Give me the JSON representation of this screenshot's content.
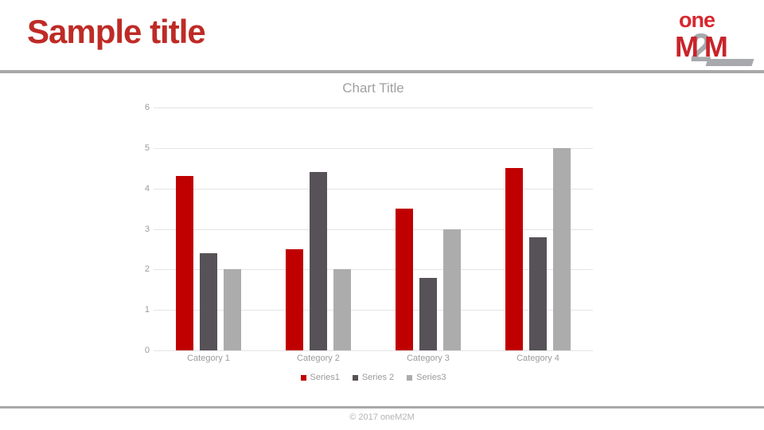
{
  "slide": {
    "title": "Sample title",
    "footer_text": "© 2017 oneM2M"
  },
  "logo": {
    "word": "one",
    "m_left": "M",
    "digit": "2",
    "m_right": "M"
  },
  "colors": {
    "title_red": "#BE2B26",
    "accent_red": "#C00000",
    "rule_gray": "#A8A8A8",
    "axis_text_gray": "#9B9B9B",
    "gridline_gray": "#E4E4E4"
  },
  "chart_data": {
    "type": "bar",
    "title": "Chart Title",
    "categories": [
      "Category 1",
      "Category 2",
      "Category 3",
      "Category 4"
    ],
    "series": [
      {
        "name": "Series1",
        "color": "#C00000",
        "values": [
          4.3,
          2.5,
          3.5,
          4.5
        ]
      },
      {
        "name": "Series 2",
        "color": "#575257",
        "values": [
          2.4,
          4.4,
          1.8,
          2.8
        ]
      },
      {
        "name": "Series3",
        "color": "#ACACAC",
        "values": [
          2.0,
          2.0,
          3.0,
          5.0
        ]
      }
    ],
    "xlabel": "",
    "ylabel": "",
    "ylim": [
      0,
      6
    ],
    "yticks": [
      0,
      1,
      2,
      3,
      4,
      5,
      6
    ],
    "grid": true,
    "legend_position": "bottom"
  }
}
